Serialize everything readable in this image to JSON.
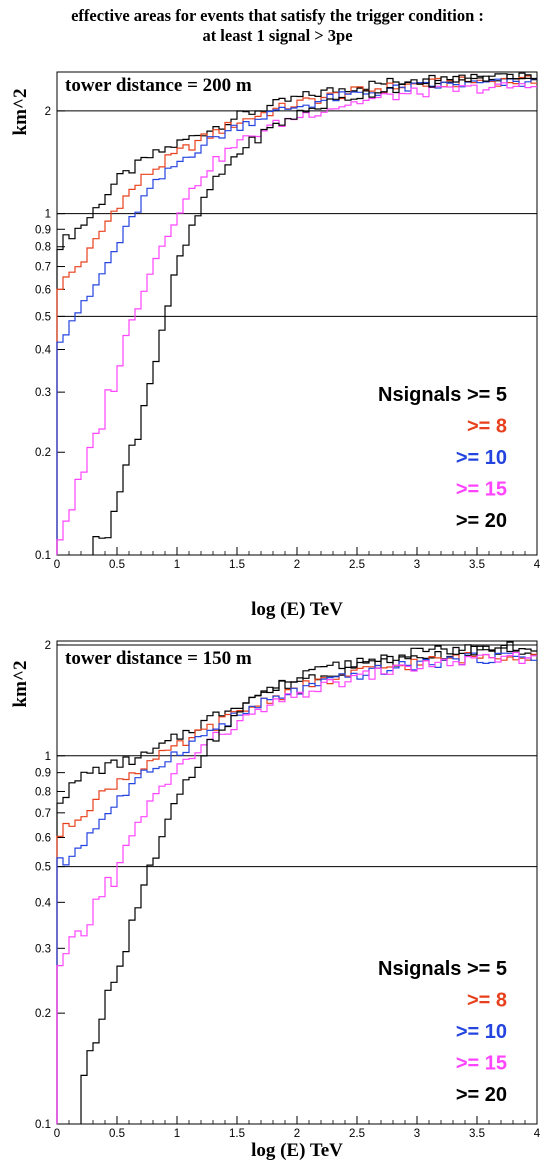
{
  "title_line1": "effective areas for events that satisfy the trigger condition :",
  "title_line2": "at least 1 signal > 3pe",
  "colors": {
    "n5": "#000000",
    "n8": "#e8401c",
    "n10": "#2444e0",
    "n15": "#ff44ff",
    "n20": "#000000"
  },
  "chart_data": [
    {
      "type": "line",
      "label": "tower distance = 200 m",
      "xlabel": "log (E) TeV",
      "ylabel": "km^2",
      "xlim": [
        0,
        4
      ],
      "ylim": [
        0.1,
        2.6
      ],
      "log_y": true,
      "xticks": [
        "0",
        "0.5",
        "1",
        "1.5",
        "2",
        "2.5",
        "3",
        "3.5",
        "4"
      ],
      "yticks": [
        "0.1",
        "0.2",
        "0.3",
        "0.4",
        "0.5",
        "0.6",
        "0.7",
        "0.8",
        "0.9",
        "1",
        "2"
      ],
      "reference_lines": [
        0.5,
        1,
        2
      ],
      "legend_title": "Nsignals",
      "series": [
        {
          "name": ">= 5",
          "color_key": "n5",
          "x": [
            0,
            0.25,
            0.5,
            0.75,
            1,
            1.25,
            1.5,
            1.75,
            2,
            2.25,
            2.5,
            2.75,
            3,
            3.25,
            3.5,
            3.75,
            4
          ],
          "values": [
            0.8,
            0.95,
            1.25,
            1.45,
            1.6,
            1.75,
            1.92,
            2.05,
            2.18,
            2.28,
            2.36,
            2.42,
            2.47,
            2.5,
            2.52,
            2.54,
            2.55
          ]
        },
        {
          "name": ">= 8",
          "color_key": "n8",
          "x": [
            0,
            0.25,
            0.5,
            0.75,
            1,
            1.25,
            1.5,
            1.75,
            2,
            2.25,
            2.5,
            2.75,
            3,
            3.25,
            3.5,
            3.75,
            4
          ],
          "values": [
            0.6,
            0.75,
            1.05,
            1.3,
            1.5,
            1.68,
            1.85,
            1.98,
            2.1,
            2.2,
            2.28,
            2.34,
            2.39,
            2.42,
            2.44,
            2.45,
            2.45
          ]
        },
        {
          "name": ">= 10",
          "color_key": "n10",
          "x": [
            0,
            0.25,
            0.5,
            0.75,
            1,
            1.25,
            1.5,
            1.75,
            2,
            2.25,
            2.5,
            2.75,
            3,
            3.25,
            3.5,
            3.75,
            4
          ],
          "values": [
            0.45,
            0.55,
            0.8,
            1.15,
            1.4,
            1.62,
            1.8,
            1.95,
            2.06,
            2.16,
            2.24,
            2.3,
            2.35,
            2.38,
            2.4,
            2.41,
            2.42
          ]
        },
        {
          "name": ">= 15",
          "color_key": "n15",
          "x": [
            0,
            0.25,
            0.5,
            0.75,
            1,
            1.25,
            1.5,
            1.75,
            2,
            2.25,
            2.5,
            2.75,
            3,
            3.25,
            3.5,
            3.75,
            4
          ],
          "values": [
            0.11,
            0.18,
            0.35,
            0.65,
            1.0,
            1.35,
            1.6,
            1.78,
            1.92,
            2.03,
            2.12,
            2.2,
            2.26,
            2.3,
            2.33,
            2.35,
            2.36
          ]
        },
        {
          "name": ">= 20",
          "color_key": "n20",
          "x": [
            0.3,
            0.5,
            0.75,
            1,
            1.25,
            1.5,
            1.75,
            2,
            2.25,
            2.5,
            2.75,
            3,
            3.25,
            3.5,
            3.75,
            4
          ],
          "values": [
            0.1,
            0.14,
            0.3,
            0.7,
            1.15,
            1.5,
            1.75,
            1.95,
            2.1,
            2.22,
            2.32,
            2.4,
            2.46,
            2.5,
            2.53,
            2.55
          ]
        }
      ]
    },
    {
      "type": "line",
      "label": "tower distance = 150 m",
      "xlabel": "log (E) TeV",
      "ylabel": "km^2",
      "xlim": [
        0,
        4
      ],
      "ylim": [
        0.1,
        2.05
      ],
      "log_y": true,
      "xticks": [
        "0",
        "0.5",
        "1",
        "1.5",
        "2",
        "2.5",
        "3",
        "3.5",
        "4"
      ],
      "yticks": [
        "0.1",
        "0.2",
        "0.3",
        "0.4",
        "0.5",
        "0.6",
        "0.7",
        "0.8",
        "0.9",
        "1",
        "2"
      ],
      "reference_lines": [
        0.5,
        1,
        2
      ],
      "legend_title": "Nsignals",
      "series": [
        {
          "name": ">= 5",
          "color_key": "n5",
          "x": [
            0,
            0.25,
            0.5,
            0.75,
            1,
            1.25,
            1.5,
            1.75,
            2,
            2.25,
            2.5,
            2.75,
            3,
            3.25,
            3.5,
            3.75,
            4
          ],
          "values": [
            0.75,
            0.9,
            0.95,
            1.0,
            1.12,
            1.25,
            1.38,
            1.5,
            1.6,
            1.68,
            1.75,
            1.8,
            1.85,
            1.9,
            1.92,
            1.95,
            1.95
          ]
        },
        {
          "name": ">= 8",
          "color_key": "n8",
          "x": [
            0,
            0.25,
            0.5,
            0.75,
            1,
            1.25,
            1.5,
            1.75,
            2,
            2.25,
            2.5,
            2.75,
            3,
            3.25,
            3.5,
            3.75,
            4
          ],
          "values": [
            0.6,
            0.72,
            0.85,
            0.95,
            1.05,
            1.18,
            1.3,
            1.42,
            1.52,
            1.6,
            1.68,
            1.74,
            1.79,
            1.83,
            1.86,
            1.88,
            1.88
          ]
        },
        {
          "name": ">= 10",
          "color_key": "n10",
          "x": [
            0,
            0.25,
            0.5,
            0.75,
            1,
            1.25,
            1.5,
            1.75,
            2,
            2.25,
            2.5,
            2.75,
            3,
            3.25,
            3.5,
            3.75,
            4
          ],
          "values": [
            0.48,
            0.6,
            0.75,
            0.9,
            1.02,
            1.15,
            1.28,
            1.4,
            1.5,
            1.58,
            1.66,
            1.72,
            1.77,
            1.81,
            1.84,
            1.86,
            1.87
          ]
        },
        {
          "name": ">= 15",
          "color_key": "n15",
          "x": [
            0,
            0.25,
            0.5,
            0.75,
            1,
            1.25,
            1.5,
            1.75,
            2,
            2.25,
            2.5,
            2.75,
            3,
            3.25,
            3.5,
            3.75,
            4
          ],
          "values": [
            0.25,
            0.35,
            0.5,
            0.72,
            0.92,
            1.08,
            1.22,
            1.35,
            1.46,
            1.55,
            1.63,
            1.7,
            1.75,
            1.79,
            1.82,
            1.84,
            1.85
          ]
        },
        {
          "name": ">= 20",
          "color_key": "n20",
          "x": [
            0.2,
            0.4,
            0.6,
            0.8,
            1,
            1.25,
            1.5,
            1.75,
            2,
            2.25,
            2.5,
            2.75,
            3,
            3.25,
            3.5,
            3.75,
            4
          ],
          "values": [
            0.12,
            0.2,
            0.32,
            0.5,
            0.78,
            1.05,
            1.3,
            1.5,
            1.62,
            1.72,
            1.8,
            1.85,
            1.9,
            1.93,
            1.95,
            1.97,
            1.98
          ]
        }
      ]
    }
  ]
}
